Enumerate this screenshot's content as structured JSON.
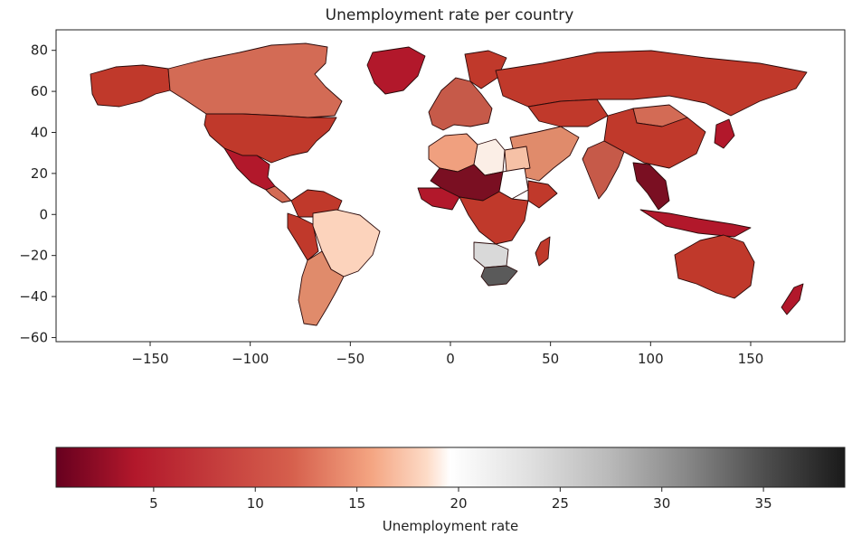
{
  "title": "Unemployment rate per country",
  "chart_data": {
    "type": "choropleth",
    "title": "Unemployment rate per country",
    "x_ticks": [
      -150,
      -100,
      -50,
      0,
      50,
      100,
      150
    ],
    "y_ticks": [
      -60,
      -40,
      -20,
      0,
      20,
      40,
      60,
      80
    ],
    "xlim": [
      -197,
      197
    ],
    "ylim": [
      -62,
      90
    ],
    "colormap": "RdGy",
    "colorbar": {
      "label": "Unemployment rate",
      "ticks": [
        5,
        10,
        15,
        20,
        25,
        30,
        35
      ],
      "range": [
        0.2,
        39
      ]
    },
    "regions_estimated": [
      {
        "name": "United States",
        "value": 4
      },
      {
        "name": "Canada",
        "value": 8
      },
      {
        "name": "Mexico",
        "value": 4
      },
      {
        "name": "Central America",
        "value": 6
      },
      {
        "name": "Colombia / Venezuela",
        "value": 9
      },
      {
        "name": "Peru / Ecuador",
        "value": 5
      },
      {
        "name": "Brazil",
        "value": 13
      },
      {
        "name": "Argentina / Chile / Paraguay",
        "value": 10
      },
      {
        "name": "Western Europe",
        "value": 7
      },
      {
        "name": "Russia",
        "value": 5
      },
      {
        "name": "Kazakhstan",
        "value": 5
      },
      {
        "name": "China / Mongolia",
        "value": 4
      },
      {
        "name": "India",
        "value": 7
      },
      {
        "name": "Southeast Asia",
        "value": 2
      },
      {
        "name": "Middle East",
        "value": 12
      },
      {
        "name": "Libya",
        "value": 19
      },
      {
        "name": "Egypt",
        "value": 11
      },
      {
        "name": "Algeria / Morocco",
        "value": 12
      },
      {
        "name": "Sahel / West Africa",
        "value": 3
      },
      {
        "name": "Chad / Niger",
        "value": 2
      },
      {
        "name": "Sudan",
        "value": 18
      },
      {
        "name": "Ethiopia / Horn of Africa",
        "value": 4
      },
      {
        "name": "Central Africa",
        "value": 5
      },
      {
        "name": "Namibia / Botswana",
        "value": 21
      },
      {
        "name": "South Africa",
        "value": 29
      },
      {
        "name": "Madagascar",
        "value": 3
      },
      {
        "name": "Australia",
        "value": 5
      },
      {
        "name": "New Zealand",
        "value": 4
      },
      {
        "name": "Japan",
        "value": 3
      },
      {
        "name": "Indonesia",
        "value": 5
      }
    ]
  }
}
